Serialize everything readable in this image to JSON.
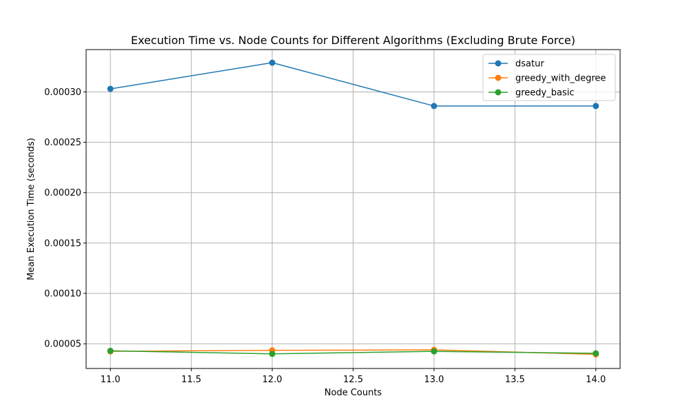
{
  "chart_data": {
    "type": "line",
    "title": "Execution Time vs. Node Counts for Different Algorithms (Excluding Brute Force)",
    "xlabel": "Node Counts",
    "ylabel": "Mean Execution Time (seconds)",
    "xlim": [
      10.85,
      14.15
    ],
    "ylim": [
      2.55e-05,
      0.000342
    ],
    "xticks": [
      11.0,
      11.5,
      12.0,
      12.5,
      13.0,
      13.5,
      14.0
    ],
    "xtick_labels": [
      "11.0",
      "11.5",
      "12.0",
      "12.5",
      "13.0",
      "13.5",
      "14.0"
    ],
    "yticks": [
      5e-05,
      0.0001,
      0.00015,
      0.0002,
      0.00025,
      0.0003
    ],
    "ytick_labels": [
      "0.00005",
      "0.00010",
      "0.00015",
      "0.00020",
      "0.00025",
      "0.00030"
    ],
    "grid": true,
    "legend_position": "top-right",
    "x": [
      11,
      12,
      13,
      14
    ],
    "series": [
      {
        "name": "dsatur",
        "color": "#1f77b4",
        "values": [
          0.000303,
          0.000329,
          0.000286,
          0.000286
        ]
      },
      {
        "name": "greedy_with_degree",
        "color": "#ff7f0e",
        "values": [
          4.25e-05,
          4.35e-05,
          4.4e-05,
          3.95e-05
        ]
      },
      {
        "name": "greedy_basic",
        "color": "#2ca02c",
        "values": [
          4.3e-05,
          4e-05,
          4.25e-05,
          4.05e-05
        ]
      }
    ]
  }
}
